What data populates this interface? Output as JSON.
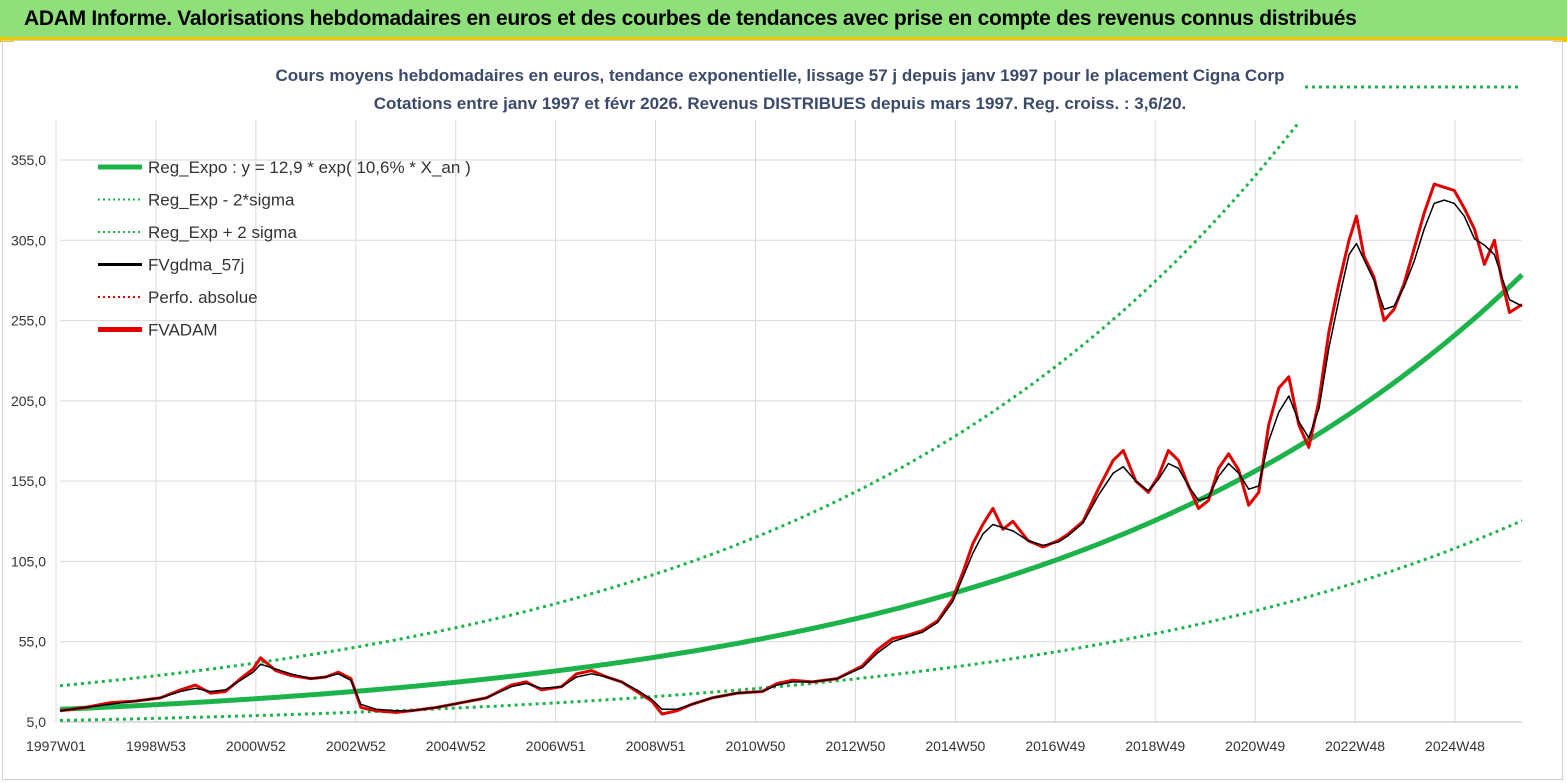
{
  "banner": {
    "title": "ADAM Informe. Valorisations hebdomadaires en euros et des courbes de tendances avec prise en compte des revenus connus distribués"
  },
  "chart_data": {
    "type": "line",
    "title": "Cours moyens hebdomadaires en euros, tendance exponentielle, lissage 57 j depuis janv 1997 pour le placement Cigna Corp",
    "subtitle": "Cotations entre janv 1997 et févr 2026. Revenus DISTRIBUES depuis mars 1997. Reg. croiss. : 3,6/20.",
    "y_ticks": [
      "355,0",
      "305,0",
      "255,0",
      "205,0",
      "155,0",
      "105,0",
      "55,0",
      "5,0"
    ],
    "ylim": [
      5,
      355
    ],
    "x_ticks": [
      "1997W01",
      "1998W53",
      "2000W52",
      "2002W52",
      "2004W52",
      "2006W51",
      "2008W51",
      "2010W50",
      "2012W50",
      "2014W50",
      "2016W49",
      "2018W49",
      "2020W49",
      "2022W48",
      "2024W48"
    ],
    "xlim_years": [
      1997.0,
      2026.15
    ],
    "grid": true,
    "legend_position": "top-left",
    "legend": [
      {
        "label": "Reg_Expo : y = 12,9 * exp( 10,6% *  X_an )",
        "style": "solid-thick",
        "color": "#1db34b"
      },
      {
        "label": "Reg_Exp - 2*sigma",
        "style": "dotted",
        "color": "#1db34b"
      },
      {
        "label": "Reg_Exp + 2 sigma",
        "style": "dotted",
        "color": "#1db34b"
      },
      {
        "label": "FVgdma_57j",
        "style": "solid",
        "color": "#000000"
      },
      {
        "label": "Perfo. absolue",
        "style": "dotted",
        "color": "#e00000"
      },
      {
        "label": "FVADAM",
        "style": "solid-thick",
        "color": "#e00000"
      }
    ],
    "regression": {
      "a": 12.9,
      "b": 0.106,
      "upper_factor": 2.14,
      "lower_factor": 0.46
    },
    "series": [
      {
        "name": "FVADAM",
        "color": "#e00000",
        "points": [
          [
            1997.0,
            12
          ],
          [
            1997.5,
            14
          ],
          [
            1998.0,
            17
          ],
          [
            1998.5,
            18
          ],
          [
            1999.0,
            20
          ],
          [
            1999.4,
            25
          ],
          [
            1999.7,
            28
          ],
          [
            2000.0,
            23
          ],
          [
            2000.3,
            24
          ],
          [
            2000.6,
            32
          ],
          [
            2000.85,
            38
          ],
          [
            2001.0,
            45
          ],
          [
            2001.3,
            37
          ],
          [
            2001.6,
            34
          ],
          [
            2002.0,
            32
          ],
          [
            2002.3,
            33
          ],
          [
            2002.55,
            36
          ],
          [
            2002.8,
            32
          ],
          [
            2003.0,
            14
          ],
          [
            2003.3,
            12
          ],
          [
            2003.7,
            11
          ],
          [
            2004.0,
            12
          ],
          [
            2004.5,
            14
          ],
          [
            2005.0,
            17
          ],
          [
            2005.5,
            20
          ],
          [
            2006.0,
            28
          ],
          [
            2006.3,
            30
          ],
          [
            2006.6,
            25
          ],
          [
            2007.0,
            27
          ],
          [
            2007.3,
            35
          ],
          [
            2007.6,
            37
          ],
          [
            2007.9,
            33
          ],
          [
            2008.2,
            30
          ],
          [
            2008.5,
            24
          ],
          [
            2008.8,
            18
          ],
          [
            2009.0,
            10
          ],
          [
            2009.3,
            12
          ],
          [
            2009.6,
            16
          ],
          [
            2010.0,
            20
          ],
          [
            2010.5,
            23
          ],
          [
            2011.0,
            24
          ],
          [
            2011.3,
            29
          ],
          [
            2011.6,
            31
          ],
          [
            2012.0,
            30
          ],
          [
            2012.5,
            32
          ],
          [
            2013.0,
            40
          ],
          [
            2013.3,
            50
          ],
          [
            2013.6,
            57
          ],
          [
            2013.9,
            59
          ],
          [
            2014.2,
            62
          ],
          [
            2014.5,
            68
          ],
          [
            2014.8,
            82
          ],
          [
            2015.0,
            98
          ],
          [
            2015.2,
            116
          ],
          [
            2015.4,
            128
          ],
          [
            2015.6,
            138
          ],
          [
            2015.8,
            125
          ],
          [
            2016.0,
            130
          ],
          [
            2016.3,
            118
          ],
          [
            2016.6,
            114
          ],
          [
            2016.9,
            118
          ],
          [
            2017.1,
            122
          ],
          [
            2017.4,
            130
          ],
          [
            2017.7,
            150
          ],
          [
            2018.0,
            168
          ],
          [
            2018.2,
            174
          ],
          [
            2018.45,
            155
          ],
          [
            2018.7,
            148
          ],
          [
            2018.9,
            158
          ],
          [
            2019.1,
            174
          ],
          [
            2019.3,
            168
          ],
          [
            2019.5,
            152
          ],
          [
            2019.7,
            138
          ],
          [
            2019.9,
            143
          ],
          [
            2020.1,
            163
          ],
          [
            2020.3,
            172
          ],
          [
            2020.5,
            162
          ],
          [
            2020.7,
            140
          ],
          [
            2020.9,
            148
          ],
          [
            2021.1,
            190
          ],
          [
            2021.3,
            213
          ],
          [
            2021.5,
            220
          ],
          [
            2021.7,
            190
          ],
          [
            2021.9,
            176
          ],
          [
            2022.1,
            205
          ],
          [
            2022.3,
            248
          ],
          [
            2022.5,
            278
          ],
          [
            2022.7,
            305
          ],
          [
            2022.85,
            320
          ],
          [
            2023.0,
            295
          ],
          [
            2023.2,
            282
          ],
          [
            2023.4,
            255
          ],
          [
            2023.6,
            262
          ],
          [
            2023.8,
            278
          ],
          [
            2024.0,
            300
          ],
          [
            2024.2,
            322
          ],
          [
            2024.4,
            340
          ],
          [
            2024.6,
            338
          ],
          [
            2024.8,
            336
          ],
          [
            2025.0,
            325
          ],
          [
            2025.2,
            312
          ],
          [
            2025.4,
            290
          ],
          [
            2025.6,
            305
          ],
          [
            2025.75,
            280
          ],
          [
            2025.9,
            260
          ],
          [
            2026.15,
            265
          ]
        ]
      },
      {
        "name": "FVgdma_57j",
        "color": "#000000",
        "points": [
          [
            1997.0,
            12
          ],
          [
            1997.5,
            14
          ],
          [
            1998.0,
            16
          ],
          [
            1998.5,
            18
          ],
          [
            1999.0,
            20
          ],
          [
            1999.4,
            24
          ],
          [
            1999.7,
            26
          ],
          [
            2000.0,
            24
          ],
          [
            2000.3,
            25
          ],
          [
            2000.6,
            31
          ],
          [
            2000.85,
            36
          ],
          [
            2001.0,
            41
          ],
          [
            2001.3,
            38
          ],
          [
            2001.6,
            35
          ],
          [
            2002.0,
            32
          ],
          [
            2002.3,
            33
          ],
          [
            2002.55,
            35
          ],
          [
            2002.8,
            31
          ],
          [
            2003.0,
            16
          ],
          [
            2003.3,
            13
          ],
          [
            2003.7,
            12
          ],
          [
            2004.0,
            12
          ],
          [
            2004.5,
            14
          ],
          [
            2005.0,
            17
          ],
          [
            2005.5,
            20
          ],
          [
            2006.0,
            27
          ],
          [
            2006.3,
            29
          ],
          [
            2006.6,
            26
          ],
          [
            2007.0,
            27
          ],
          [
            2007.3,
            33
          ],
          [
            2007.6,
            35
          ],
          [
            2007.9,
            33
          ],
          [
            2008.2,
            30
          ],
          [
            2008.5,
            25
          ],
          [
            2008.8,
            19
          ],
          [
            2009.0,
            13
          ],
          [
            2009.3,
            13
          ],
          [
            2009.6,
            16
          ],
          [
            2010.0,
            20
          ],
          [
            2010.5,
            23
          ],
          [
            2011.0,
            24
          ],
          [
            2011.3,
            28
          ],
          [
            2011.6,
            30
          ],
          [
            2012.0,
            30
          ],
          [
            2012.5,
            32
          ],
          [
            2013.0,
            39
          ],
          [
            2013.3,
            48
          ],
          [
            2013.6,
            55
          ],
          [
            2013.9,
            58
          ],
          [
            2014.2,
            61
          ],
          [
            2014.5,
            67
          ],
          [
            2014.8,
            80
          ],
          [
            2015.0,
            95
          ],
          [
            2015.2,
            110
          ],
          [
            2015.4,
            122
          ],
          [
            2015.6,
            128
          ],
          [
            2015.8,
            126
          ],
          [
            2016.0,
            124
          ],
          [
            2016.3,
            118
          ],
          [
            2016.6,
            115
          ],
          [
            2016.9,
            117
          ],
          [
            2017.1,
            121
          ],
          [
            2017.4,
            129
          ],
          [
            2017.7,
            146
          ],
          [
            2018.0,
            160
          ],
          [
            2018.2,
            164
          ],
          [
            2018.45,
            155
          ],
          [
            2018.7,
            149
          ],
          [
            2018.9,
            156
          ],
          [
            2019.1,
            166
          ],
          [
            2019.3,
            163
          ],
          [
            2019.5,
            152
          ],
          [
            2019.7,
            143
          ],
          [
            2019.9,
            145
          ],
          [
            2020.1,
            158
          ],
          [
            2020.3,
            166
          ],
          [
            2020.5,
            160
          ],
          [
            2020.7,
            150
          ],
          [
            2020.9,
            152
          ],
          [
            2021.1,
            180
          ],
          [
            2021.3,
            198
          ],
          [
            2021.5,
            208
          ],
          [
            2021.7,
            192
          ],
          [
            2021.9,
            182
          ],
          [
            2022.1,
            200
          ],
          [
            2022.3,
            238
          ],
          [
            2022.5,
            268
          ],
          [
            2022.7,
            296
          ],
          [
            2022.85,
            303
          ],
          [
            2023.0,
            293
          ],
          [
            2023.2,
            280
          ],
          [
            2023.4,
            262
          ],
          [
            2023.6,
            264
          ],
          [
            2023.8,
            276
          ],
          [
            2024.0,
            292
          ],
          [
            2024.2,
            312
          ],
          [
            2024.4,
            328
          ],
          [
            2024.6,
            330
          ],
          [
            2024.8,
            328
          ],
          [
            2025.0,
            320
          ],
          [
            2025.2,
            306
          ],
          [
            2025.4,
            302
          ],
          [
            2025.6,
            296
          ],
          [
            2025.75,
            282
          ],
          [
            2025.9,
            268
          ],
          [
            2026.15,
            264
          ]
        ]
      }
    ]
  }
}
